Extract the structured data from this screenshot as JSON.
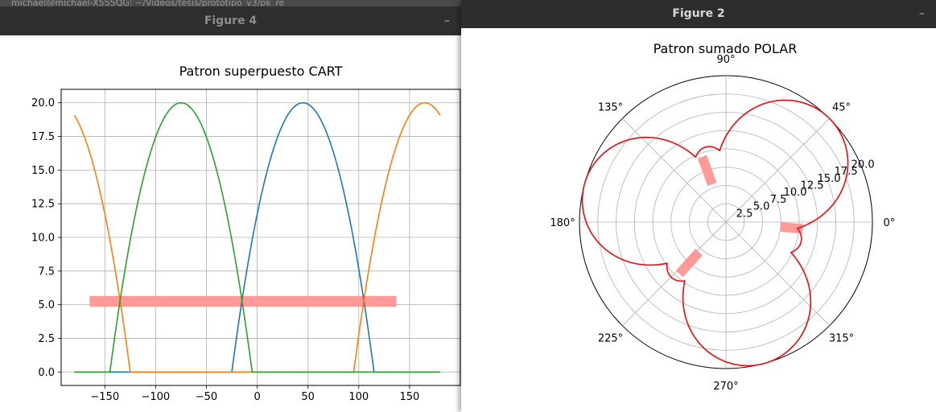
{
  "background_title": "michael@michael-X555QG: ~/Videos/tesis/prototipo_v3/pk_re",
  "windows": {
    "left": {
      "title": "Figure 4",
      "minimize_glyph": "–"
    },
    "right": {
      "title": "Figure 2",
      "minimize_glyph": "–"
    }
  },
  "chart_data": [
    {
      "type": "line",
      "title": "Patron superpuesto CART",
      "xlim": [
        -193,
        200
      ],
      "ylim": [
        -1,
        21
      ],
      "x_ticks": [
        -150,
        -100,
        -50,
        0,
        50,
        100,
        150
      ],
      "x_tick_labels": [
        "−150",
        "−100",
        "−50",
        "0",
        "50",
        "100",
        "150"
      ],
      "y_ticks": [
        0,
        2.5,
        5,
        7.5,
        10,
        12.5,
        15,
        17.5,
        20
      ],
      "y_tick_labels": [
        "0.0",
        "2.5",
        "5.0",
        "7.5",
        "10.0",
        "12.5",
        "15.0",
        "17.5",
        "20.0"
      ],
      "grid": true,
      "series": [
        {
          "color": "#1f77b4",
          "shape": "inverted-parabola",
          "peak_x": 45,
          "peak_y": 20,
          "zero_left": -25,
          "zero_right": 115,
          "x_range": [
            -180,
            180
          ]
        },
        {
          "color": "#ff7f0e",
          "shape": "wrapped-parabola",
          "peak_x": 165,
          "peak_y": 20,
          "zero_left": 95,
          "zero_right": -125,
          "x_range": [
            -180,
            180
          ]
        },
        {
          "color": "#2ca02c",
          "shape": "inverted-parabola",
          "peak_x": -75,
          "peak_y": 20,
          "zero_left": -145,
          "zero_right": -5,
          "x_range": [
            -180,
            180
          ]
        }
      ],
      "highlight": {
        "color": "#ff9a9a",
        "x0": -165,
        "x1": 137,
        "y": 5.25,
        "thickness": 0.8
      }
    },
    {
      "type": "polar",
      "title": "Patron sumado POLAR",
      "rlim": [
        0,
        20
      ],
      "r_ticks": [
        2.5,
        5,
        7.5,
        10,
        12.5,
        15,
        17.5,
        20
      ],
      "r_tick_labels": [
        "2.5",
        "5.0",
        "7.5",
        "10.0",
        "12.5",
        "15.0",
        "17.5",
        "20.0"
      ],
      "r_label_angle_deg": 22.5,
      "theta_ticks": [
        0,
        45,
        90,
        135,
        180,
        225,
        270,
        315
      ],
      "theta_tick_labels": [
        "0°",
        "45°",
        "90°",
        "135°",
        "180°",
        "225°",
        "270°",
        "315°"
      ],
      "grid": true,
      "series": [
        {
          "color": "#e8161c",
          "shape": "three-lobe-sum",
          "lobe_centers_deg": [
            45,
            165,
            285
          ],
          "lobe_peak": 20
        }
      ],
      "highlights": [
        {
          "color": "#ff9a9a",
          "theta_deg": -5,
          "r0": 7.5,
          "r1": 10.5
        },
        {
          "color": "#ff9a9a",
          "theta_deg": 110,
          "r0": 5.5,
          "r1": 9.5
        },
        {
          "color": "#ff9a9a",
          "theta_deg": 228,
          "r0": 5.5,
          "r1": 9.5
        }
      ]
    }
  ]
}
